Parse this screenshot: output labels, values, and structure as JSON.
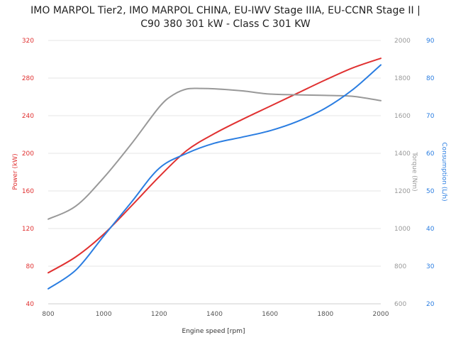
{
  "chart_data": {
    "type": "line",
    "title_lines": [
      "IMO MARPOL Tier2, IMO MARPOL CHINA, EU-IWV Stage IIIA, EU-CCNR Stage II |",
      "C90 380 301 kW - Class C 301 KW"
    ],
    "xlabel": "Engine speed [rpm]",
    "xlim": [
      800,
      2000
    ],
    "x_ticks": [
      "800",
      "1000",
      "1200",
      "1400",
      "1600",
      "1800",
      "2000"
    ],
    "y_axes": [
      {
        "key": "power",
        "label": "Power (kW)",
        "color": "#e03131",
        "lim": [
          40,
          320
        ],
        "ticks": [
          "40",
          "80",
          "120",
          "160",
          "200",
          "240",
          "280",
          "320"
        ]
      },
      {
        "key": "torque",
        "label": "Torque (Nm)",
        "color": "#999999",
        "lim": [
          600,
          2000
        ],
        "ticks": [
          "600",
          "800",
          "1000",
          "1200",
          "1400",
          "1600",
          "1800",
          "2000"
        ]
      },
      {
        "key": "consumption",
        "label": "Consumption (L/h)",
        "color": "#2a7de1",
        "lim": [
          20,
          90
        ],
        "ticks": [
          "20",
          "30",
          "40",
          "50",
          "60",
          "70",
          "80",
          "90"
        ]
      }
    ],
    "series": [
      {
        "axis": "power",
        "color": "#e03131",
        "x": [
          800,
          900,
          1000,
          1100,
          1200,
          1300,
          1400,
          1500,
          1600,
          1700,
          1800,
          1900,
          2000
        ],
        "y": [
          73,
          90,
          114,
          144,
          175,
          203,
          221,
          236,
          250,
          264,
          278,
          291,
          301
        ]
      },
      {
        "axis": "torque",
        "color": "#999999",
        "x": [
          800,
          900,
          1000,
          1100,
          1200,
          1250,
          1300,
          1350,
          1400,
          1500,
          1600,
          1700,
          1800,
          1900,
          2000
        ],
        "y": [
          1050,
          1120,
          1270,
          1450,
          1645,
          1710,
          1742,
          1745,
          1743,
          1732,
          1715,
          1711,
          1708,
          1703,
          1680
        ]
      },
      {
        "axis": "consumption",
        "color": "#2a7de1",
        "x": [
          800,
          900,
          1000,
          1100,
          1200,
          1300,
          1400,
          1500,
          1600,
          1700,
          1800,
          1900,
          2000
        ],
        "y": [
          24,
          29,
          38,
          47,
          56,
          60,
          62.7,
          64.3,
          66,
          68.5,
          72,
          77,
          83.5
        ]
      }
    ],
    "grid": "horizontal"
  }
}
